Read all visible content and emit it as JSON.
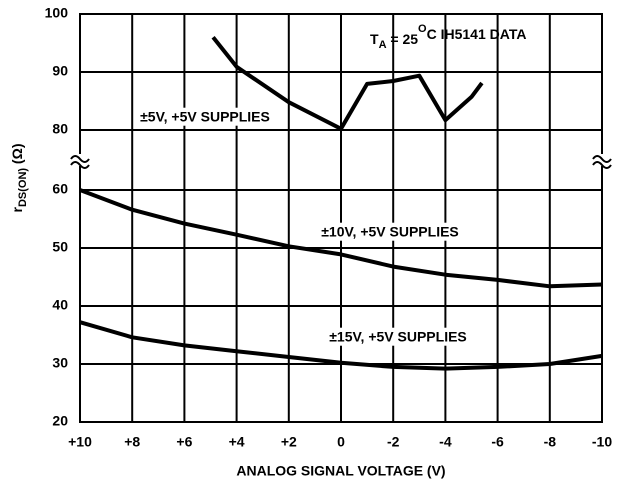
{
  "chart_data": {
    "type": "line",
    "annotation": {
      "parts": [
        "T",
        "A",
        " = 25",
        "O",
        "C IH5141 DATA"
      ]
    },
    "x_label": "ANALOG SIGNAL VOLTAGE (V)",
    "y_label": {
      "parts": [
        "r",
        "DS(ON)",
        " (Ω)"
      ]
    },
    "xlim": [
      10,
      -10
    ],
    "xticks": [
      {
        "value": 10,
        "label": "+10"
      },
      {
        "value": 8,
        "label": "+8"
      },
      {
        "value": 6,
        "label": "+6"
      },
      {
        "value": 4,
        "label": "+4"
      },
      {
        "value": 2,
        "label": "+2"
      },
      0,
      -2,
      -4,
      -6,
      -8,
      -10
    ],
    "ylim": [
      20,
      100
    ],
    "ybreak": [
      60,
      80
    ],
    "yticks": [
      20,
      30,
      40,
      50,
      60,
      80,
      90,
      100
    ],
    "grid": true,
    "series": [
      {
        "name": "±5V, +5V SUPPLIES",
        "color": "#000000",
        "x": [
          4.9,
          4,
          2,
          0,
          -1,
          -2,
          -3,
          -4,
          -5,
          -5.4
        ],
        "values": [
          96,
          90.9,
          84.8,
          80.2,
          78.3,
          78.8,
          79.7,
          81.7,
          85.7,
          88.1
        ]
      },
      {
        "name": "±10V, +5V SUPPLIES",
        "color": "#000000",
        "x": [
          10,
          8,
          6,
          4,
          2,
          0,
          -2,
          -4,
          -6,
          -8,
          -10
        ],
        "values": [
          60,
          56.6,
          54.2,
          52.3,
          50.3,
          48.9,
          46.8,
          45.4,
          44.5,
          43.4,
          43.7
        ]
      },
      {
        "name": "±15V, +5V SUPPLIES",
        "color": "#000000",
        "x": [
          10,
          8,
          6,
          4,
          2,
          0,
          -2,
          -4,
          -6,
          -8,
          -10
        ],
        "values": [
          37.2,
          34.6,
          33.2,
          32.2,
          31.2,
          30.2,
          29.5,
          29.2,
          29.5,
          30,
          31.4
        ]
      }
    ]
  }
}
